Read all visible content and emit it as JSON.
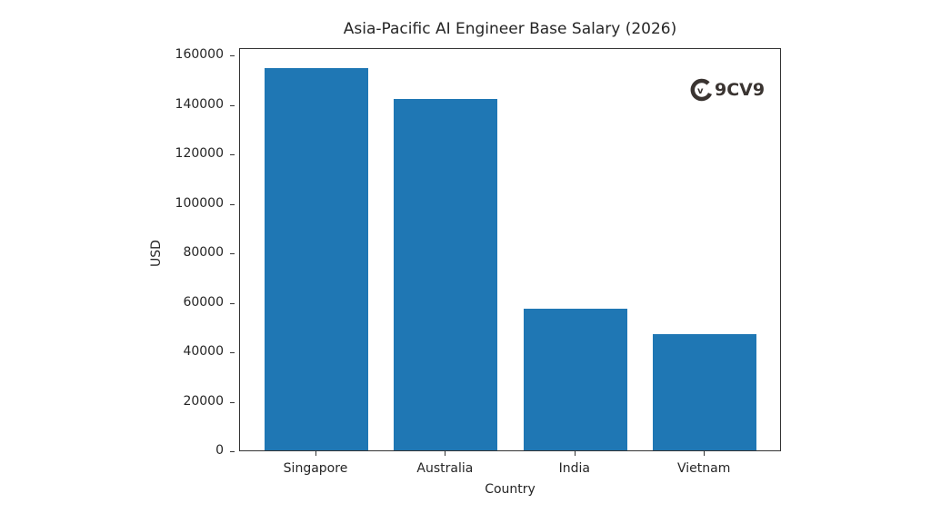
{
  "chart_data": {
    "type": "bar",
    "title": "Asia-Pacific AI Engineer Base Salary (2026)",
    "xlabel": "Country",
    "ylabel": "USD",
    "categories": [
      "Singapore",
      "Australia",
      "India",
      "Vietnam"
    ],
    "values": [
      155000,
      142500,
      57500,
      47500
    ],
    "ylim": [
      0,
      163000
    ],
    "yticks": [
      0,
      20000,
      40000,
      60000,
      80000,
      100000,
      120000,
      140000,
      160000
    ],
    "ytick_labels": [
      "0",
      "20000",
      "40000",
      "60000",
      "80000",
      "100000",
      "120000",
      "140000",
      "160000"
    ],
    "bar_color": "#1f77b4",
    "grid": false,
    "legend": null
  },
  "watermark": {
    "text": "9CV9",
    "icon": "9cv9-logo-icon",
    "color": "#3a3431"
  }
}
